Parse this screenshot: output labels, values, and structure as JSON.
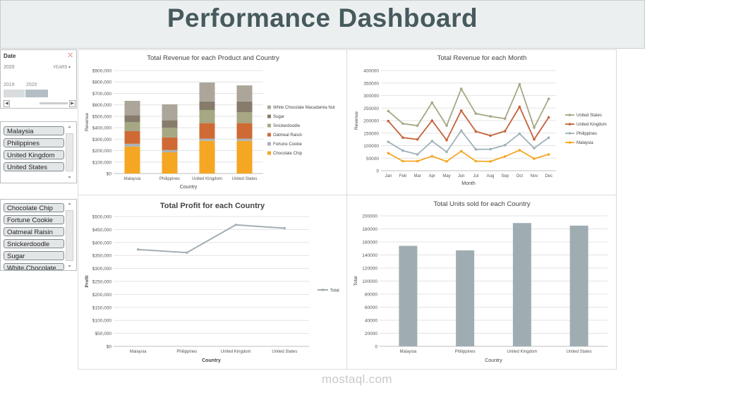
{
  "header": {
    "title": "Performance Dashboard"
  },
  "date_slicer": {
    "title": "Date",
    "year": "2020",
    "level": "YEARS",
    "timeline_labels": [
      "2019",
      "2020"
    ]
  },
  "country_slicer": {
    "items": [
      "Malaysia",
      "Philippines",
      "United Kingdom",
      "United States"
    ]
  },
  "product_slicer": {
    "items": [
      "Chocolate Chip",
      "Fortune Cookie",
      "Oatmeal Raisin",
      "Snickerdoodle",
      "Sugar",
      "White Chocolate"
    ]
  },
  "watermark": {
    "text": "mostaql.com"
  },
  "colors": {
    "chocolate_chip": "#f5a623",
    "fortune_cookie": "#aab3b8",
    "oatmeal_raisin": "#cf6a34",
    "snickerdoodle": "#a6a783",
    "sugar": "#877c6b",
    "white_choc": "#aca59a",
    "us": "#a6a783",
    "uk": "#c5623a",
    "ph": "#9eb1b9",
    "my": "#f5a623",
    "profit": "#a4aeb2",
    "units": "#9fadb2"
  },
  "chart_data": [
    {
      "id": "rev_product",
      "type": "bar",
      "stacked": true,
      "title": "Total Revenue for each Product and Country",
      "xlabel": "Country",
      "ylabel": "Revenue",
      "ylim": [
        0,
        900000
      ],
      "yticks": [
        "$0",
        "$100,000",
        "$200,000",
        "$300,000",
        "$400,000",
        "$500,000",
        "$600,000",
        "$700,000",
        "$800,000",
        "$900,000"
      ],
      "categories": [
        "Malaysia",
        "Philippines",
        "United Kingdom",
        "United States"
      ],
      "series": [
        {
          "name": "Chocolate Chip",
          "values": [
            235000,
            185000,
            285000,
            285000
          ]
        },
        {
          "name": "Fortune Cookie",
          "values": [
            25000,
            20000,
            20000,
            20000
          ]
        },
        {
          "name": "Oatmeal Raisin",
          "values": [
            110000,
            110000,
            135000,
            135000
          ]
        },
        {
          "name": "Snickerdoodle",
          "values": [
            80000,
            85000,
            115000,
            95000
          ]
        },
        {
          "name": "Sugar",
          "values": [
            60000,
            65000,
            75000,
            95000
          ]
        },
        {
          "name": "White Chocolate Macadamia Nut",
          "values": [
            125000,
            140000,
            165000,
            140000
          ]
        }
      ],
      "legend": "right"
    },
    {
      "id": "rev_month",
      "type": "line",
      "title": "Total Revenue for each Month",
      "xlabel": "Month",
      "ylabel": "Revenue",
      "ylim": [
        0,
        400000
      ],
      "yticks": [
        "0",
        "50000",
        "100000",
        "150000",
        "200000",
        "250000",
        "300000",
        "350000",
        "400000"
      ],
      "categories": [
        "Jan",
        "Feb",
        "Mar",
        "Apr",
        "May",
        "Jun",
        "Jul",
        "Aug",
        "Sep",
        "Oct",
        "Nov",
        "Dec"
      ],
      "series": [
        {
          "name": "United States",
          "values": [
            238000,
            188000,
            180000,
            272000,
            180000,
            327000,
            228000,
            217000,
            208000,
            345000,
            172000,
            287000
          ]
        },
        {
          "name": "United Kingdom",
          "values": [
            198000,
            132000,
            125000,
            200000,
            122000,
            240000,
            157000,
            140000,
            158000,
            255000,
            125000,
            213000
          ]
        },
        {
          "name": "Philippines",
          "values": [
            115000,
            80000,
            65000,
            118000,
            75000,
            160000,
            85000,
            86000,
            102000,
            148000,
            90000,
            132000
          ]
        },
        {
          "name": "Malaysia",
          "values": [
            70000,
            38000,
            38000,
            58000,
            37000,
            78000,
            38000,
            37000,
            57000,
            82000,
            48000,
            65000
          ]
        }
      ],
      "legend": "right"
    },
    {
      "id": "profit",
      "type": "line",
      "title": "Total Profit for each Country",
      "xlabel": "Country",
      "ylabel": "Profit",
      "ylim": [
        0,
        500000
      ],
      "yticks": [
        "$0",
        "$50,000",
        "$100,000",
        "$150,000",
        "$200,000",
        "$250,000",
        "$300,000",
        "$350,000",
        "$400,000",
        "$450,000",
        "$500,000"
      ],
      "categories": [
        "Malaysia",
        "Philippines",
        "United Kingdom",
        "United States"
      ],
      "series": [
        {
          "name": "Total",
          "values": [
            373000,
            361000,
            468000,
            455000
          ]
        }
      ],
      "legend": "right"
    },
    {
      "id": "units",
      "type": "bar",
      "title": "Total Units sold for each Country",
      "xlabel": "Country",
      "ylabel": "Total",
      "ylim": [
        0,
        200000
      ],
      "yticks": [
        "0",
        "20000",
        "40000",
        "60000",
        "80000",
        "100000",
        "120000",
        "140000",
        "160000",
        "180000",
        "200000"
      ],
      "categories": [
        "Malaysia",
        "Philippines",
        "United Kingdom",
        "United States"
      ],
      "values": [
        154000,
        147000,
        189000,
        185000
      ]
    }
  ]
}
